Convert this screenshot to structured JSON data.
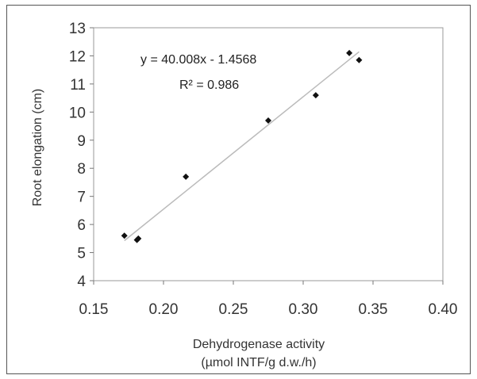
{
  "chart_data": {
    "type": "scatter",
    "title": "",
    "xlabel": "Dehydrogenase activity",
    "xlabel_line2": "(µmol INTF/g  d.w./h)",
    "ylabel": "Root elongation (cm)",
    "xlim": [
      0.15,
      0.4
    ],
    "ylim": [
      4,
      13
    ],
    "xticks": [
      "0.15",
      "0.20",
      "0.25",
      "0.30",
      "0.35",
      "0.40"
    ],
    "yticks": [
      "4",
      "5",
      "6",
      "7",
      "8",
      "9",
      "10",
      "11",
      "12",
      "13"
    ],
    "grid": false,
    "points": [
      {
        "x": 0.172,
        "y": 5.6
      },
      {
        "x": 0.181,
        "y": 5.45
      },
      {
        "x": 0.182,
        "y": 5.5
      },
      {
        "x": 0.216,
        "y": 7.7
      },
      {
        "x": 0.275,
        "y": 9.7
      },
      {
        "x": 0.309,
        "y": 10.6
      },
      {
        "x": 0.333,
        "y": 12.1
      },
      {
        "x": 0.34,
        "y": 11.85
      }
    ],
    "trendline": {
      "slope": 40.008,
      "intercept": -1.4568,
      "x_range": [
        0.172,
        0.34
      ]
    },
    "equation_text": "y = 40.008x - 1.4568",
    "r2_text": "R² = 0.986",
    "marker_color": "#111111",
    "trend_color": "#bbbbbb"
  }
}
